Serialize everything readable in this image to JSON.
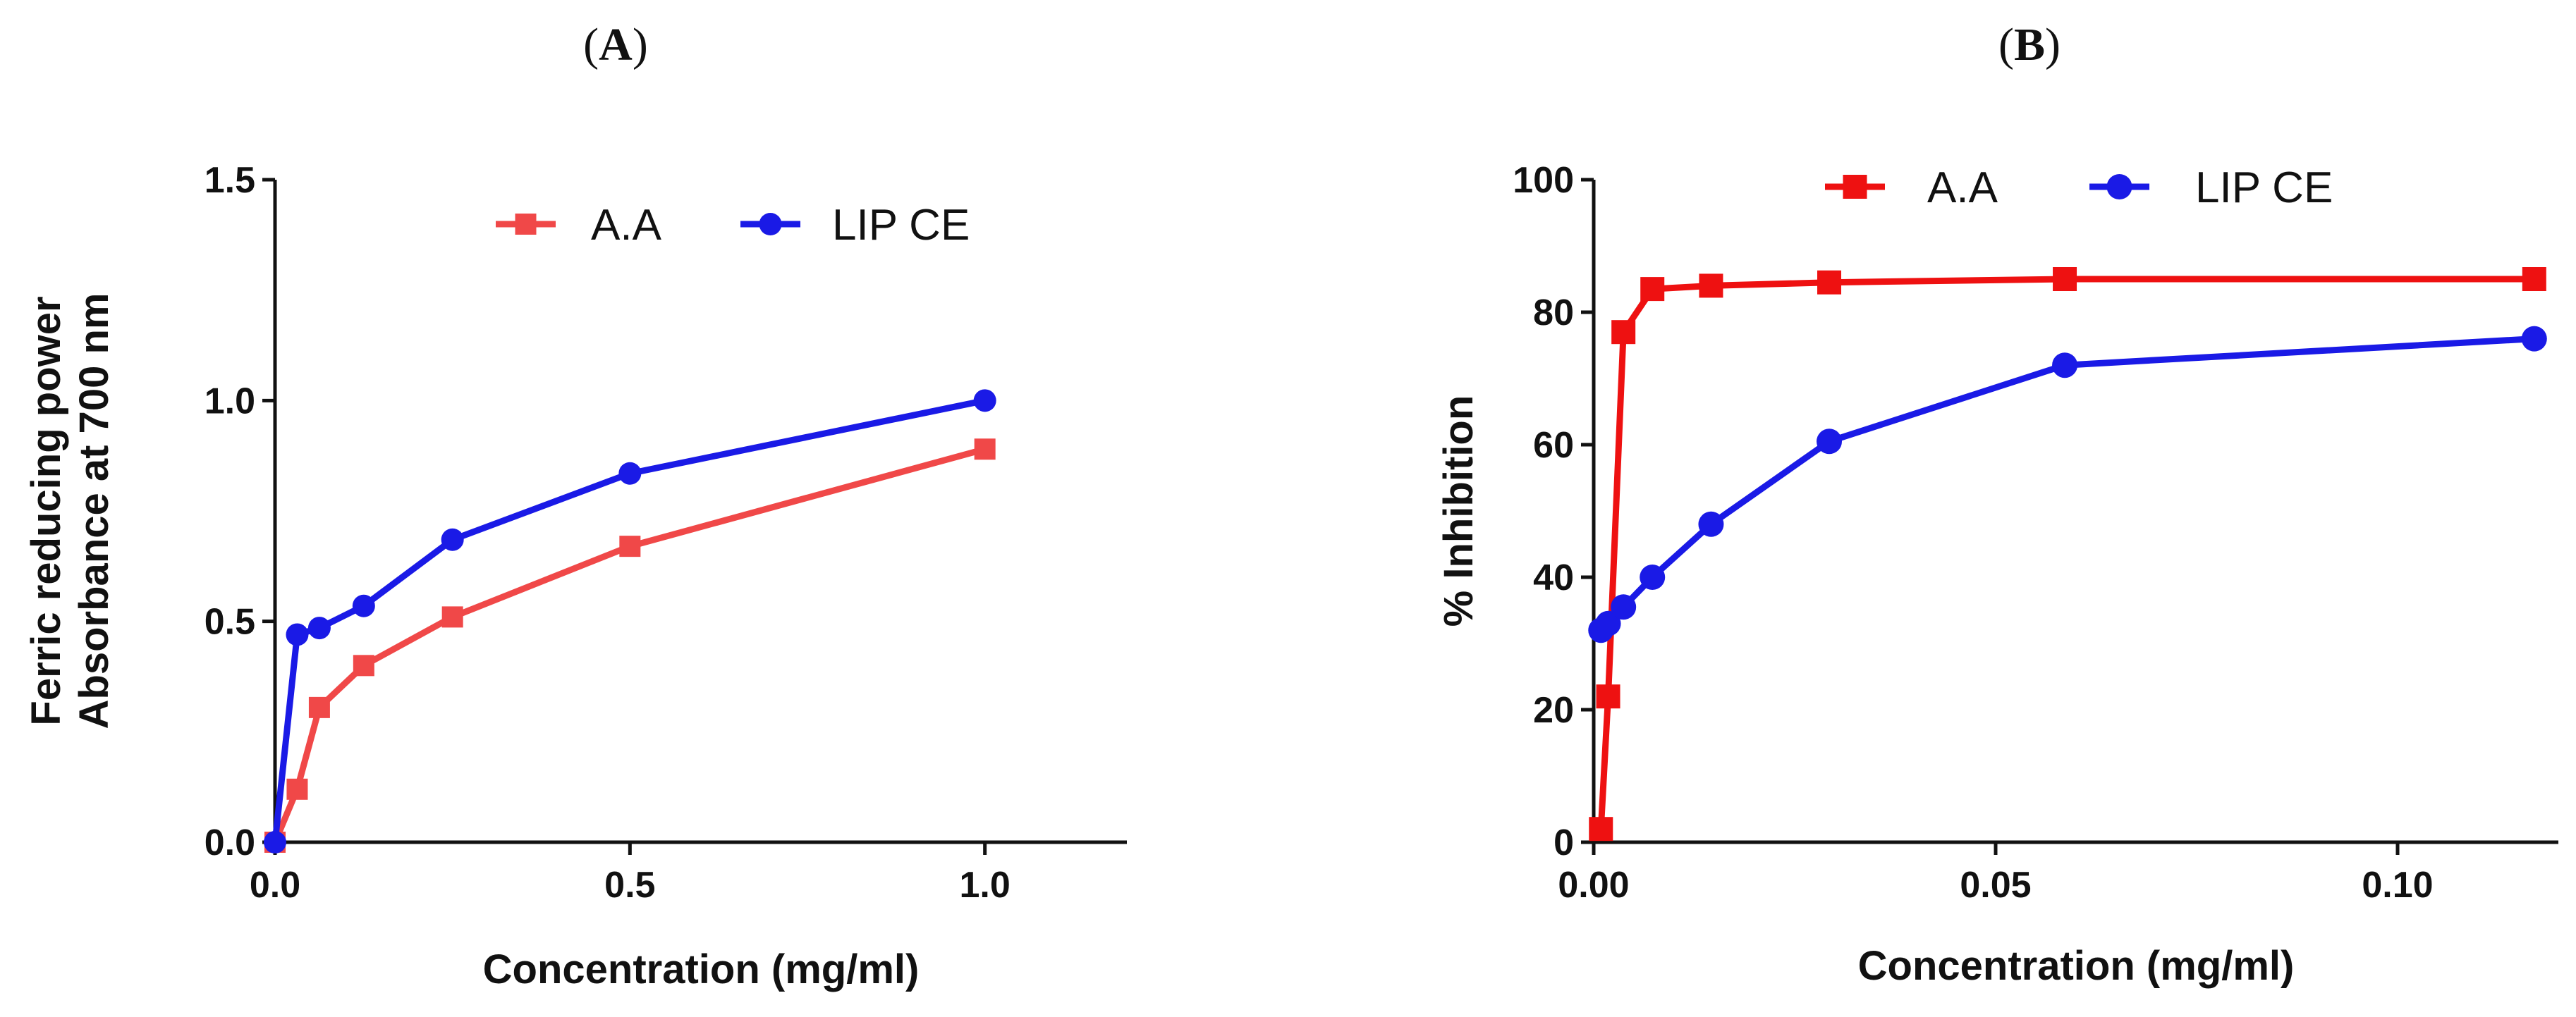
{
  "colors": {
    "panelA": {
      "aa": "#f04848",
      "lip": "#1a1ae6"
    },
    "panelB": {
      "aa": "#ee1111",
      "lip": "#1a1ae6"
    }
  },
  "chart_data": [
    {
      "id": "A",
      "type": "line",
      "panel_label": "A",
      "title": "",
      "xlabel": "Concentration (mg/ml)",
      "ylabel_lines": [
        "Ferric reducing  power",
        "Absorbance at 700 nm"
      ],
      "xlim": [
        0,
        1.2
      ],
      "ylim": [
        0,
        1.5
      ],
      "x_ticks": [
        0,
        0.5,
        1.0
      ],
      "x_tick_labels": [
        "0.0",
        "0.5",
        "1.0"
      ],
      "y_ticks": [
        0,
        0.5,
        1.0,
        1.5
      ],
      "y_tick_labels": [
        "0.0",
        "0.5",
        "1.0",
        "1.5"
      ],
      "legend_position": "top-center",
      "series": [
        {
          "name": "A.A",
          "marker": "square",
          "color_key": "aa",
          "x": [
            0,
            0.03125,
            0.0625,
            0.125,
            0.25,
            0.5,
            1.0
          ],
          "y": [
            0.0,
            0.12,
            0.305,
            0.4,
            0.51,
            0.67,
            0.89
          ]
        },
        {
          "name": "LIP CE",
          "marker": "circle",
          "color_key": "lip",
          "x": [
            0,
            0.03125,
            0.0625,
            0.125,
            0.25,
            0.5,
            1.0
          ],
          "y": [
            0.0,
            0.47,
            0.485,
            0.535,
            0.685,
            0.835,
            1.0
          ]
        }
      ]
    },
    {
      "id": "B",
      "type": "line",
      "panel_label": "B",
      "title": "",
      "xlabel": "Concentration (mg/ml)",
      "ylabel_lines": [
        "% Inhibition"
      ],
      "xlim": [
        0,
        0.12
      ],
      "ylim": [
        0,
        100
      ],
      "x_ticks": [
        0,
        0.05,
        0.1
      ],
      "x_tick_labels": [
        "0.00",
        "0.05",
        "0.10"
      ],
      "y_ticks": [
        0,
        20,
        40,
        60,
        80,
        100
      ],
      "y_tick_labels": [
        "0",
        "20",
        "40",
        "60",
        "80",
        "100"
      ],
      "legend_position": "top-center",
      "series": [
        {
          "name": "A.A",
          "marker": "square",
          "color_key": "aa",
          "x": [
            0.0009,
            0.0018,
            0.0037,
            0.0073,
            0.0146,
            0.0293,
            0.0586,
            0.117
          ],
          "y": [
            2,
            22,
            77,
            83.5,
            84,
            84.5,
            85,
            85
          ]
        },
        {
          "name": "LIP CE",
          "marker": "circle",
          "color_key": "lip",
          "x": [
            0.0009,
            0.0018,
            0.0037,
            0.0073,
            0.0146,
            0.0293,
            0.0586,
            0.117
          ],
          "y": [
            32,
            33,
            35.5,
            40,
            48,
            60.5,
            72,
            76
          ]
        }
      ]
    }
  ]
}
